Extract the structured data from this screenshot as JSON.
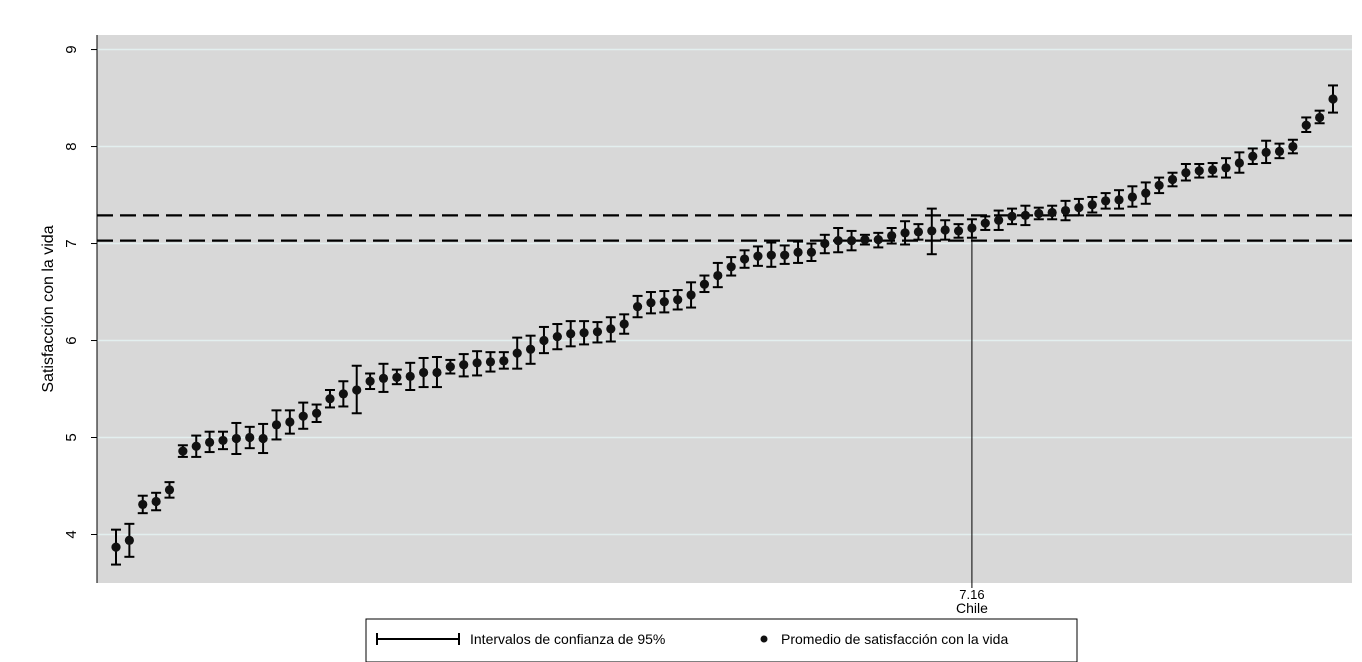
{
  "chart_data": {
    "type": "scatter",
    "ylabel": "Satisfacción con la vida",
    "xlabel": "",
    "ylim": [
      3.5,
      9.15
    ],
    "yticks": [
      4,
      5,
      6,
      7,
      8,
      9
    ],
    "grid": true,
    "colors": {
      "plot_bg": "#d8d8d8",
      "grid": "#e3efef",
      "marker": "#111111",
      "page_bg": "#ffffff"
    },
    "series": [
      {
        "name": "Promedio de satisfacción con la vida",
        "ci_name": "Intervalos de confianza de 95%",
        "points": [
          {
            "y": 3.87,
            "lo": 3.69,
            "hi": 4.05
          },
          {
            "y": 3.94,
            "lo": 3.77,
            "hi": 4.11
          },
          {
            "y": 4.31,
            "lo": 4.22,
            "hi": 4.4
          },
          {
            "y": 4.34,
            "lo": 4.25,
            "hi": 4.43
          },
          {
            "y": 4.46,
            "lo": 4.38,
            "hi": 4.54
          },
          {
            "y": 4.86,
            "lo": 4.8,
            "hi": 4.92
          },
          {
            "y": 4.91,
            "lo": 4.8,
            "hi": 5.02
          },
          {
            "y": 4.95,
            "lo": 4.85,
            "hi": 5.06
          },
          {
            "y": 4.97,
            "lo": 4.88,
            "hi": 5.06
          },
          {
            "y": 4.99,
            "lo": 4.83,
            "hi": 5.15
          },
          {
            "y": 5.0,
            "lo": 4.89,
            "hi": 5.11
          },
          {
            "y": 4.99,
            "lo": 4.84,
            "hi": 5.14
          },
          {
            "y": 5.13,
            "lo": 4.98,
            "hi": 5.28
          },
          {
            "y": 5.16,
            "lo": 5.04,
            "hi": 5.28
          },
          {
            "y": 5.22,
            "lo": 5.09,
            "hi": 5.36
          },
          {
            "y": 5.25,
            "lo": 5.16,
            "hi": 5.34
          },
          {
            "y": 5.4,
            "lo": 5.31,
            "hi": 5.49
          },
          {
            "y": 5.45,
            "lo": 5.32,
            "hi": 5.58
          },
          {
            "y": 5.49,
            "lo": 5.25,
            "hi": 5.74
          },
          {
            "y": 5.58,
            "lo": 5.5,
            "hi": 5.66
          },
          {
            "y": 5.61,
            "lo": 5.47,
            "hi": 5.76
          },
          {
            "y": 5.62,
            "lo": 5.55,
            "hi": 5.7
          },
          {
            "y": 5.63,
            "lo": 5.49,
            "hi": 5.77
          },
          {
            "y": 5.67,
            "lo": 5.52,
            "hi": 5.82
          },
          {
            "y": 5.67,
            "lo": 5.52,
            "hi": 5.83
          },
          {
            "y": 5.73,
            "lo": 5.66,
            "hi": 5.8
          },
          {
            "y": 5.75,
            "lo": 5.63,
            "hi": 5.86
          },
          {
            "y": 5.77,
            "lo": 5.64,
            "hi": 5.89
          },
          {
            "y": 5.78,
            "lo": 5.68,
            "hi": 5.88
          },
          {
            "y": 5.79,
            "lo": 5.71,
            "hi": 5.88
          },
          {
            "y": 5.87,
            "lo": 5.71,
            "hi": 6.03
          },
          {
            "y": 5.91,
            "lo": 5.76,
            "hi": 6.05
          },
          {
            "y": 6.0,
            "lo": 5.87,
            "hi": 6.14
          },
          {
            "y": 6.04,
            "lo": 5.91,
            "hi": 6.17
          },
          {
            "y": 6.07,
            "lo": 5.94,
            "hi": 6.2
          },
          {
            "y": 6.08,
            "lo": 5.96,
            "hi": 6.2
          },
          {
            "y": 6.09,
            "lo": 5.98,
            "hi": 6.19
          },
          {
            "y": 6.12,
            "lo": 5.99,
            "hi": 6.24
          },
          {
            "y": 6.17,
            "lo": 6.07,
            "hi": 6.27
          },
          {
            "y": 6.35,
            "lo": 6.24,
            "hi": 6.46
          },
          {
            "y": 6.39,
            "lo": 6.28,
            "hi": 6.5
          },
          {
            "y": 6.4,
            "lo": 6.29,
            "hi": 6.51
          },
          {
            "y": 6.42,
            "lo": 6.32,
            "hi": 6.52
          },
          {
            "y": 6.47,
            "lo": 6.34,
            "hi": 6.6
          },
          {
            "y": 6.58,
            "lo": 6.5,
            "hi": 6.67
          },
          {
            "y": 6.67,
            "lo": 6.55,
            "hi": 6.8
          },
          {
            "y": 6.76,
            "lo": 6.67,
            "hi": 6.86
          },
          {
            "y": 6.84,
            "lo": 6.75,
            "hi": 6.93
          },
          {
            "y": 6.87,
            "lo": 6.77,
            "hi": 6.97
          },
          {
            "y": 6.88,
            "lo": 6.76,
            "hi": 7.01
          },
          {
            "y": 6.88,
            "lo": 6.79,
            "hi": 6.98
          },
          {
            "y": 6.91,
            "lo": 6.8,
            "hi": 7.02
          },
          {
            "y": 6.91,
            "lo": 6.82,
            "hi": 7.0
          },
          {
            "y": 7.0,
            "lo": 6.9,
            "hi": 7.09
          },
          {
            "y": 7.03,
            "lo": 6.91,
            "hi": 7.16
          },
          {
            "y": 7.03,
            "lo": 6.93,
            "hi": 7.13
          },
          {
            "y": 7.04,
            "lo": 6.99,
            "hi": 7.09
          },
          {
            "y": 7.04,
            "lo": 6.96,
            "hi": 7.11
          },
          {
            "y": 7.08,
            "lo": 7.0,
            "hi": 7.16
          },
          {
            "y": 7.11,
            "lo": 6.99,
            "hi": 7.23
          },
          {
            "y": 7.12,
            "lo": 7.04,
            "hi": 7.2
          },
          {
            "y": 7.13,
            "lo": 6.89,
            "hi": 7.36
          },
          {
            "y": 7.14,
            "lo": 7.04,
            "hi": 7.24
          },
          {
            "y": 7.13,
            "lo": 7.06,
            "hi": 7.2
          },
          {
            "y": 7.16,
            "lo": 7.06,
            "hi": 7.25
          },
          {
            "y": 7.21,
            "lo": 7.14,
            "hi": 7.28
          },
          {
            "y": 7.24,
            "lo": 7.14,
            "hi": 7.34
          },
          {
            "y": 7.28,
            "lo": 7.2,
            "hi": 7.36
          },
          {
            "y": 7.29,
            "lo": 7.19,
            "hi": 7.39
          },
          {
            "y": 7.31,
            "lo": 7.25,
            "hi": 7.37
          },
          {
            "y": 7.32,
            "lo": 7.25,
            "hi": 7.39
          },
          {
            "y": 7.34,
            "lo": 7.24,
            "hi": 7.44
          },
          {
            "y": 7.37,
            "lo": 7.29,
            "hi": 7.46
          },
          {
            "y": 7.4,
            "lo": 7.32,
            "hi": 7.48
          },
          {
            "y": 7.44,
            "lo": 7.36,
            "hi": 7.52
          },
          {
            "y": 7.45,
            "lo": 7.36,
            "hi": 7.55
          },
          {
            "y": 7.48,
            "lo": 7.38,
            "hi": 7.59
          },
          {
            "y": 7.52,
            "lo": 7.41,
            "hi": 7.63
          },
          {
            "y": 7.6,
            "lo": 7.52,
            "hi": 7.68
          },
          {
            "y": 7.66,
            "lo": 7.59,
            "hi": 7.73
          },
          {
            "y": 7.73,
            "lo": 7.65,
            "hi": 7.82
          },
          {
            "y": 7.75,
            "lo": 7.68,
            "hi": 7.82
          },
          {
            "y": 7.76,
            "lo": 7.69,
            "hi": 7.83
          },
          {
            "y": 7.78,
            "lo": 7.68,
            "hi": 7.88
          },
          {
            "y": 7.83,
            "lo": 7.73,
            "hi": 7.94
          },
          {
            "y": 7.9,
            "lo": 7.82,
            "hi": 7.98
          },
          {
            "y": 7.94,
            "lo": 7.83,
            "hi": 8.06
          },
          {
            "y": 7.95,
            "lo": 7.88,
            "hi": 8.03
          },
          {
            "y": 8.0,
            "lo": 7.93,
            "hi": 8.07
          },
          {
            "y": 8.22,
            "lo": 8.15,
            "hi": 8.3
          },
          {
            "y": 8.3,
            "lo": 8.24,
            "hi": 8.37
          },
          {
            "y": 8.49,
            "lo": 8.35,
            "hi": 8.63
          }
        ]
      }
    ],
    "reference_lines": {
      "y": [
        7.03,
        7.29
      ],
      "style": "dashed"
    },
    "highlight": {
      "index": 64,
      "value_label": "7.16",
      "category_label": "Chile"
    },
    "legend": {
      "placement": "bottom",
      "entries": [
        "Intervalos de confianza de 95%",
        "Promedio de satisfacción con la vida"
      ]
    }
  }
}
